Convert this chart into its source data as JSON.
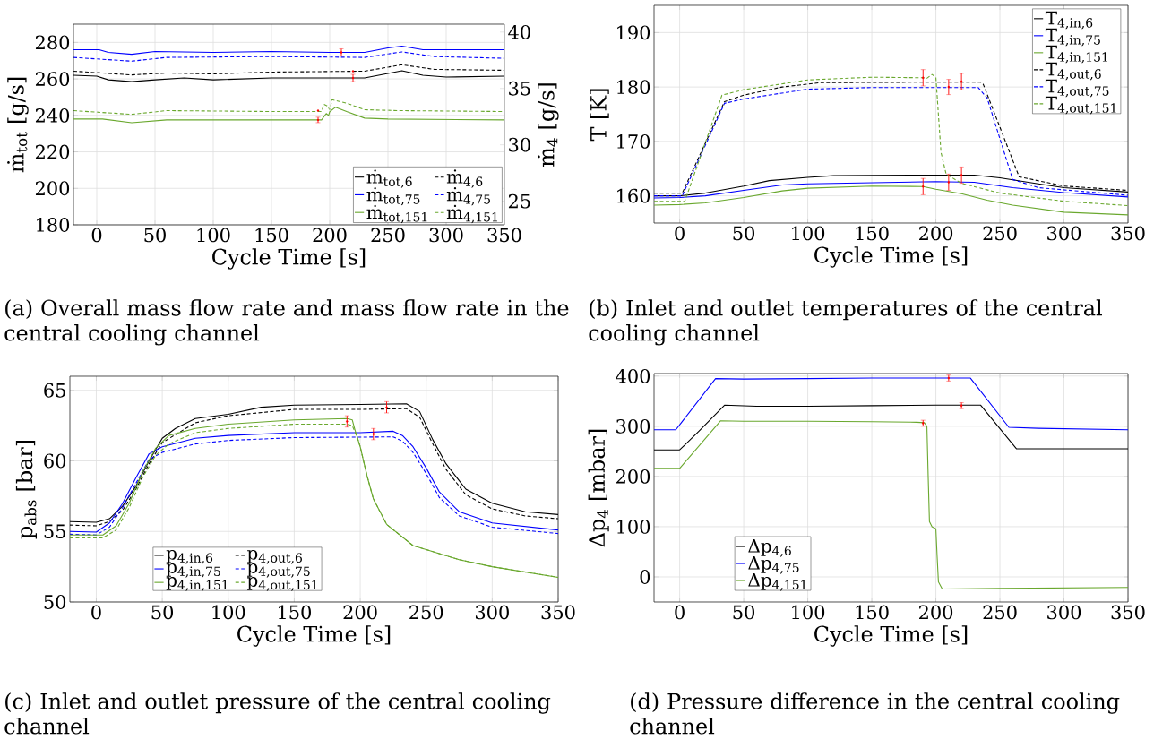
{
  "chart_data": [
    {
      "type": "line",
      "xlabel": "Cycle Time [s]",
      "ylabel": "ṁ$_{tot}$ [g/s]",
      "y2label": "ṁ$_{4}$ [g/s]",
      "xlim": [
        -20,
        350
      ],
      "ylim": [
        180,
        290
      ],
      "y2lim": [
        22.9,
        40.7
      ],
      "xticks": [
        0,
        50,
        100,
        150,
        200,
        250,
        300,
        350
      ],
      "yticks": [
        180,
        200,
        220,
        240,
        260,
        280
      ],
      "y2ticks": [
        25,
        30,
        35,
        40
      ],
      "grid": true,
      "legend": "bottom right",
      "annotations": [
        "(a) Overall mass flow rate and mass flow rate in the central cooling channel"
      ],
      "series": [
        {
          "name": "ṁ$_{tot,6}$",
          "color": "#000000",
          "line_style": "solid",
          "x": [
            -20,
            0,
            10,
            30,
            50,
            75,
            100,
            150,
            200,
            230,
            250,
            262,
            280,
            300,
            350
          ],
          "values": [
            262,
            261.5,
            259.5,
            258.5,
            259.5,
            260.5,
            259.5,
            260.5,
            260.5,
            260.5,
            263,
            264.5,
            262,
            261,
            261.5
          ]
        },
        {
          "name": "ṁ$_{4,6}$",
          "color": "#000000",
          "line_style": "dashed",
          "axis": "y2",
          "x": [
            -20,
            30,
            60,
            100,
            150,
            230,
            262,
            290,
            350
          ],
          "values": [
            36.53,
            36.2,
            36.37,
            36.29,
            36.45,
            36.53,
            37.1,
            36.69,
            36.61
          ]
        },
        {
          "name": "ṁ$_{tot,75}$",
          "color": "#0000ff",
          "line_style": "solid",
          "x": [
            -20,
            2,
            10,
            30,
            50,
            100,
            150,
            200,
            230,
            250,
            262,
            280,
            350
          ],
          "values": [
            276,
            276,
            274.5,
            273.5,
            275,
            274.5,
            275,
            274.5,
            274.5,
            277,
            278,
            276,
            276
          ]
        },
        {
          "name": "ṁ$_{4,75}$",
          "color": "#0000ff",
          "line_style": "dashed",
          "axis": "y2",
          "x": [
            -20,
            30,
            60,
            150,
            230,
            262,
            290,
            350
          ],
          "values": [
            37.75,
            37.42,
            37.75,
            37.83,
            37.75,
            38.24,
            37.83,
            37.67
          ]
        },
        {
          "name": "ṁ$_{tot,151}$",
          "color": "#6aa82e",
          "line_style": "solid",
          "x": [
            -20,
            5,
            30,
            60,
            150,
            193,
            197,
            199,
            200,
            205,
            215,
            230,
            250,
            350
          ],
          "values": [
            238,
            238,
            236,
            237.5,
            237.5,
            237.5,
            241,
            240,
            242,
            244.5,
            242,
            238.5,
            238,
            237.5
          ]
        },
        {
          "name": "ṁ$_{4,151}$",
          "color": "#6aa82e",
          "line_style": "dashed",
          "axis": "y2",
          "x": [
            -20,
            30,
            60,
            150,
            193,
            195,
            198,
            200,
            202,
            215,
            230,
            260,
            350
          ],
          "values": [
            33.03,
            32.7,
            33.03,
            32.95,
            32.95,
            33.6,
            33.44,
            33.11,
            34.0,
            33.68,
            33.11,
            33.03,
            32.95
          ]
        },
        {
          "type": "scatter",
          "color": "#ff0000",
          "x": [
            190,
            210,
            220
          ],
          "values": [
            237.5,
            274.5,
            260.5
          ],
          "errors": [
            1.5,
            2,
            2
          ]
        },
        {
          "type": "scatter",
          "color": "#ff0000",
          "axis": "y2",
          "x": [
            190,
            220
          ],
          "values": [
            33.03,
            36.53
          ]
        }
      ]
    },
    {
      "type": "line",
      "xlabel": "Cycle Time [s]",
      "ylabel": "T [K]",
      "xlim": [
        -20,
        350
      ],
      "ylim": [
        155,
        195
      ],
      "xticks": [
        0,
        50,
        100,
        150,
        200,
        250,
        300,
        350
      ],
      "yticks": [
        160,
        170,
        180,
        190
      ],
      "grid": true,
      "legend": "top right",
      "annotations": [
        "(b) Inlet and outlet temperatures of the central cooling channel"
      ],
      "series": [
        {
          "name": "T$_{4,in,6}$",
          "color": "#000000",
          "line_style": "solid",
          "x": [
            -20,
            0,
            20,
            50,
            70,
            100,
            120,
            180,
            230,
            250,
            280,
            300,
            350
          ],
          "values": [
            160,
            160,
            160.5,
            161.8,
            162.8,
            163.4,
            163.7,
            163.8,
            163.8,
            163.3,
            162.2,
            161.5,
            160.7
          ]
        },
        {
          "name": "T$_{4,in,75}$",
          "color": "#0000ff",
          "line_style": "solid",
          "x": [
            -20,
            0,
            20,
            50,
            80,
            100,
            150,
            200,
            230,
            260,
            300,
            350
          ],
          "values": [
            159.6,
            159.7,
            160,
            161,
            162,
            162.2,
            162.4,
            162.6,
            162.5,
            161.5,
            160.6,
            159.8
          ]
        },
        {
          "name": "T$_{4,in,151}$",
          "color": "#6aa82e",
          "line_style": "solid",
          "x": [
            -20,
            0,
            20,
            50,
            80,
            100,
            150,
            190,
            200,
            210,
            220,
            240,
            260,
            300,
            350
          ],
          "values": [
            158.3,
            158.4,
            158.7,
            159.7,
            160.9,
            161.4,
            161.8,
            161.7,
            161.2,
            160.8,
            160.4,
            159.2,
            158.3,
            157,
            156.5
          ]
        },
        {
          "name": "T$_{4,out,6}$",
          "color": "#000000",
          "line_style": "dashed",
          "x": [
            -20,
            2,
            35,
            50,
            80,
            110,
            200,
            235,
            237,
            265,
            300,
            350
          ],
          "values": [
            160.5,
            160.5,
            177.3,
            178.5,
            180,
            180.8,
            180.9,
            180.9,
            180.5,
            163.5,
            161.8,
            161
          ]
        },
        {
          "name": "T$_{4,out,75}$",
          "color": "#0000ff",
          "line_style": "dashed",
          "x": [
            -20,
            2,
            35,
            50,
            100,
            150,
            233,
            240,
            260,
            280,
            350
          ],
          "values": [
            160,
            160,
            177,
            177.8,
            179.6,
            179.9,
            179.9,
            178,
            163,
            161.5,
            160.1
          ]
        },
        {
          "name": "T$_{4,out,151}$",
          "color": "#6aa82e",
          "line_style": "dashed",
          "x": [
            -20,
            4,
            33,
            50,
            100,
            150,
            190,
            193,
            197,
            200,
            204,
            208,
            220,
            250,
            300,
            350
          ],
          "values": [
            159,
            159,
            178.5,
            179.5,
            181.3,
            181.8,
            181.7,
            181.6,
            182.3,
            181.8,
            168,
            164,
            162.3,
            160.5,
            159,
            158.2
          ]
        },
        {
          "type": "scatter",
          "color": "#ff0000",
          "x": [
            190,
            210,
            220,
            190,
            210,
            220
          ],
          "values": [
            181.7,
            180,
            181,
            161.7,
            162.5,
            163.8
          ],
          "errors": [
            1.5,
            1.4,
            1.5,
            1.5,
            1.5,
            1.5
          ]
        }
      ]
    },
    {
      "type": "line",
      "xlabel": "Cycle Time [s]",
      "ylabel": "p$_{abs}$ [bar]",
      "xlim": [
        -20,
        350
      ],
      "ylim": [
        50,
        66
      ],
      "xticks": [
        0,
        50,
        100,
        150,
        200,
        250,
        300,
        350
      ],
      "yticks": [
        50,
        55,
        60,
        65
      ],
      "grid": true,
      "legend": "bottom left",
      "annotations": [
        "(c) Inlet and outlet pressure of the central cooling channel"
      ],
      "series": [
        {
          "name": "p$_{4,in,6}$",
          "color": "#000000",
          "line_style": "solid",
          "x": [
            -20,
            0,
            10,
            20,
            30,
            40,
            50,
            60,
            75,
            100,
            125,
            150,
            200,
            235,
            245,
            255,
            265,
            280,
            300,
            325,
            350
          ],
          "values": [
            55.7,
            55.65,
            55.9,
            56.8,
            58.2,
            60,
            61.6,
            62.3,
            63,
            63.3,
            63.8,
            63.95,
            64,
            64.05,
            63.5,
            61.5,
            59.8,
            58,
            57,
            56.4,
            56.2
          ]
        },
        {
          "name": "p$_{4,out,6}$",
          "color": "#000000",
          "line_style": "dashed",
          "x": [
            -20,
            0,
            10,
            20,
            30,
            40,
            50,
            75,
            100,
            150,
            200,
            235,
            245,
            255,
            265,
            280,
            300,
            325,
            350
          ],
          "values": [
            55.45,
            55.4,
            55.7,
            56.5,
            58,
            59.8,
            61.3,
            62.7,
            63.2,
            63.65,
            63.65,
            63.7,
            63.1,
            61.2,
            59.4,
            57.6,
            56.6,
            56.1,
            55.9
          ]
        },
        {
          "name": "p$_{4,in,75}$",
          "color": "#0000ff",
          "line_style": "solid",
          "x": [
            -20,
            0,
            10,
            20,
            30,
            40,
            50,
            75,
            100,
            150,
            200,
            225,
            232,
            240,
            250,
            260,
            275,
            300,
            350
          ],
          "values": [
            55,
            54.95,
            55.6,
            57,
            58.8,
            60.5,
            61,
            61.6,
            61.8,
            62,
            62,
            62.1,
            61.8,
            61,
            59.5,
            57.8,
            56.4,
            55.6,
            55.1
          ]
        },
        {
          "name": "p$_{4,out,75}$",
          "color": "#0000ff",
          "line_style": "dashed",
          "x": [
            -20,
            0,
            10,
            20,
            30,
            40,
            50,
            75,
            100,
            150,
            225,
            232,
            240,
            250,
            260,
            275,
            300,
            350
          ],
          "values": [
            54.8,
            54.75,
            55.3,
            56.7,
            58.4,
            60.1,
            60.6,
            61.2,
            61.45,
            61.65,
            61.7,
            61.4,
            60.6,
            59.1,
            57.4,
            56.1,
            55.3,
            54.85
          ]
        },
        {
          "name": "p$_{4,in,151}$",
          "color": "#6aa82e",
          "line_style": "solid",
          "x": [
            -20,
            5,
            15,
            25,
            35,
            45,
            55,
            75,
            100,
            150,
            190,
            194,
            196,
            200,
            205,
            210,
            220,
            240,
            275,
            300,
            350
          ],
          "values": [
            54.75,
            54.75,
            55.4,
            57,
            59.2,
            60.9,
            61.8,
            62.3,
            62.6,
            62.9,
            63,
            62.9,
            62.2,
            61,
            59,
            57.3,
            55.5,
            54,
            53,
            52.5,
            51.75
          ]
        },
        {
          "name": "p$_{4,out,151}$",
          "color": "#6aa82e",
          "line_style": "dashed",
          "x": [
            -20,
            5,
            15,
            25,
            35,
            45,
            55,
            75,
            100,
            150,
            190,
            194,
            198,
            200,
            205,
            210,
            220,
            240,
            275,
            300,
            350
          ],
          "values": [
            54.55,
            54.55,
            55.1,
            56.7,
            58.8,
            60.4,
            61.2,
            62,
            62.3,
            62.6,
            62.6,
            62.5,
            61.6,
            61,
            59,
            57.3,
            55.5,
            54,
            53,
            52.5,
            51.75
          ]
        },
        {
          "type": "scatter",
          "color": "#ff0000",
          "x": [
            190,
            210,
            220
          ],
          "values": [
            62.8,
            61.9,
            63.8
          ],
          "errors": [
            0.4,
            0.4,
            0.4
          ]
        }
      ]
    },
    {
      "type": "line",
      "xlabel": "Cycle Time [s]",
      "ylabel": "Δp$_{4}$ [mbar]",
      "xlim": [
        -20,
        350
      ],
      "ylim": [
        -50,
        405
      ],
      "xticks": [
        0,
        50,
        100,
        150,
        200,
        250,
        300,
        350
      ],
      "yticks": [
        0,
        100,
        200,
        300,
        400
      ],
      "grid": true,
      "legend": "bottom left",
      "annotations": [
        "(d) Pressure difference in the central cooling channel"
      ],
      "series": [
        {
          "name": "Δp$_{4,6}$",
          "color": "#000000",
          "line_style": "solid",
          "x": [
            -20,
            0,
            5,
            15,
            35,
            60,
            100,
            150,
            200,
            235,
            263,
            300,
            350
          ],
          "values": [
            253,
            253,
            265,
            290,
            342,
            340,
            340,
            341,
            342,
            342,
            255,
            255,
            255
          ]
        },
        {
          "name": "Δp$_{4,75}$",
          "color": "#0000ff",
          "line_style": "solid",
          "x": [
            -20,
            -3,
            28,
            50,
            100,
            150,
            200,
            227,
            257,
            280,
            350
          ],
          "values": [
            293,
            293,
            395,
            394,
            395,
            396,
            396,
            396,
            298,
            296,
            293
          ]
        },
        {
          "name": "Δp$_{4,151}$",
          "color": "#6aa82e",
          "line_style": "solid",
          "x": [
            -20,
            0,
            32,
            50,
            100,
            150,
            185,
            191,
            193,
            194,
            195,
            197,
            199,
            200,
            201,
            202,
            205,
            250,
            350
          ],
          "values": [
            216,
            216,
            311,
            310,
            310,
            309,
            308,
            307,
            300,
            200,
            110,
            100,
            97,
            96,
            40,
            -10,
            -24,
            -23,
            -21
          ]
        },
        {
          "type": "scatter",
          "color": "#ff0000",
          "x": [
            190,
            210,
            220
          ],
          "values": [
            306,
            396,
            341
          ],
          "errors": [
            6,
            6,
            6
          ]
        }
      ]
    }
  ]
}
